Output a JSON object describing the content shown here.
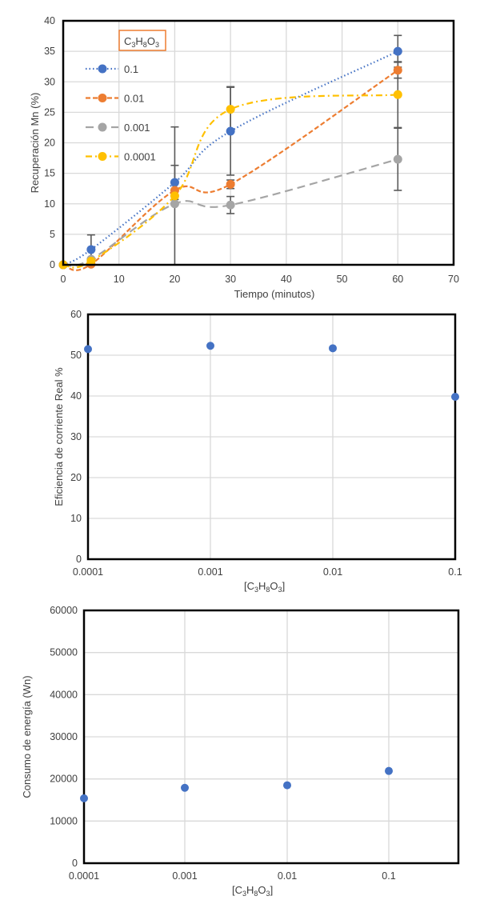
{
  "chart_data": [
    {
      "type": "line",
      "title": "",
      "xlabel": "Tiempo (minutos)",
      "ylabel": "Recuperación Mn (%)",
      "xlim": [
        0,
        70
      ],
      "ylim": [
        0,
        40
      ],
      "xticks": [
        0,
        10,
        20,
        30,
        40,
        50,
        60,
        70
      ],
      "yticks": [
        0,
        5,
        10,
        15,
        20,
        25,
        30,
        35,
        40
      ],
      "grid": true,
      "legend_title": "C3H8O3",
      "legend_position": "upper-left",
      "x": [
        0,
        5,
        20,
        30,
        60
      ],
      "series": [
        {
          "name": "0.1",
          "color": "#4472c4",
          "dash": "dotted",
          "values": [
            0,
            2.5,
            13.5,
            21.9,
            35.0
          ],
          "error": [
            0,
            2.4,
            2.8,
            7.2,
            2.6
          ]
        },
        {
          "name": "0.01",
          "color": "#ed7d31",
          "dash": "dashed",
          "values": [
            0,
            0.1,
            12.2,
            13.2,
            31.9
          ],
          "error": [
            0,
            0,
            0,
            0.7,
            1.3
          ]
        },
        {
          "name": "0.001",
          "color": "#a5a5a5",
          "dash": "long-dash",
          "values": [
            0,
            0.9,
            10.0,
            9.8,
            17.3
          ],
          "error": [
            0,
            0,
            0,
            1.4,
            5.1
          ]
        },
        {
          "name": "0.0001",
          "color": "#ffc000",
          "dash": "dash-dot",
          "values": [
            0,
            0.6,
            11.3,
            25.5,
            27.9
          ],
          "error": [
            0,
            0,
            11.3,
            3.7,
            5.4
          ]
        }
      ]
    },
    {
      "type": "scatter",
      "title": "",
      "xlabel": "[C3H8O3]",
      "ylabel": "Eficiencia de corriente Real %",
      "xscale": "log",
      "categories": [
        "0.0001",
        "0.001",
        "0.01",
        "0.1"
      ],
      "values": [
        51.5,
        52.3,
        51.7,
        39.8
      ],
      "ylim": [
        0,
        60
      ],
      "yticks": [
        0,
        10,
        20,
        30,
        40,
        50,
        60
      ],
      "grid": true,
      "color": "#4472c4"
    },
    {
      "type": "scatter",
      "title": "",
      "xlabel": "[C3H8O3]",
      "ylabel": "Consumo de energía (Wn)",
      "xscale": "log",
      "categories": [
        "0.0001",
        "0.001",
        "0.01",
        "0.1"
      ],
      "values": [
        15400,
        17900,
        18500,
        21900
      ],
      "ylim": [
        0,
        60000
      ],
      "yticks": [
        0,
        10000,
        20000,
        30000,
        40000,
        50000,
        60000
      ],
      "grid": true,
      "color": "#4472c4"
    }
  ],
  "labels": {
    "c1_xlabel": "Tiempo (minutos)",
    "c1_ylabel": "Recuperación Mn (%)",
    "c2_ylabel": "Eficiencia de corriente Real %",
    "c3_ylabel": "Consumo de energía (Wn)",
    "legend_title_parts": [
      "C",
      "3",
      "H",
      "8",
      "O",
      "3"
    ]
  }
}
